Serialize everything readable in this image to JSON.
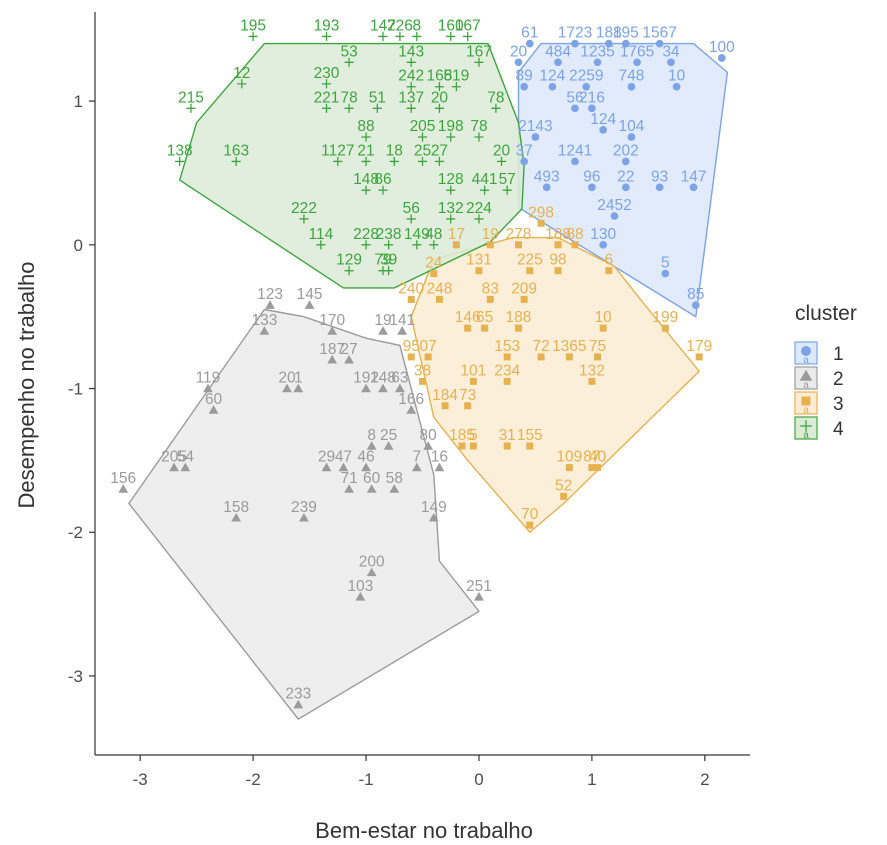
{
  "chart_data": {
    "type": "scatter",
    "title": "",
    "xlabel": "Bem-estar no trabalho",
    "ylabel": "Desempenho no trabalho",
    "xlim": [
      -3.4,
      2.4
    ],
    "ylim": [
      -3.55,
      1.62
    ],
    "x_ticks": [
      -3,
      -2,
      -1,
      0,
      1,
      2
    ],
    "y_ticks": [
      -3,
      -2,
      -1,
      0,
      1
    ],
    "x_tick_labels": [
      "-3",
      "-2",
      "-1",
      "0",
      "1",
      "2"
    ],
    "y_tick_labels": [
      "-3",
      "-2",
      "-1",
      "0",
      "1"
    ],
    "grid": false,
    "legend": {
      "title": "cluster",
      "placement": "right",
      "entries": [
        {
          "label": "1",
          "marker": "circle",
          "color": "#7ca3e8"
        },
        {
          "label": "2",
          "marker": "triangle",
          "color": "#9b9b9b"
        },
        {
          "label": "3",
          "marker": "square",
          "color": "#e8b150"
        },
        {
          "label": "4",
          "marker": "cross",
          "color": "#3ea53e"
        }
      ],
      "key_glyph": "a"
    },
    "series": [
      {
        "name": "1",
        "color": "#7ca3e8",
        "fill": "#dce8fb",
        "marker": "circle",
        "hull": [
          [
            0.55,
            1.4
          ],
          [
            1.9,
            1.4
          ],
          [
            2.2,
            1.2
          ],
          [
            1.92,
            -0.5
          ],
          [
            0.35,
            0.26
          ],
          [
            0.35,
            1.2
          ]
        ],
        "points": [
          {
            "label": "61",
            "x": 0.45,
            "y": 1.4
          },
          {
            "label": "1723",
            "x": 0.85,
            "y": 1.4
          },
          {
            "label": "188",
            "x": 1.15,
            "y": 1.4
          },
          {
            "label": "195",
            "x": 1.3,
            "y": 1.4
          },
          {
            "label": "1567",
            "x": 1.6,
            "y": 1.4
          },
          {
            "label": "100",
            "x": 2.15,
            "y": 1.3
          },
          {
            "label": "20",
            "x": 0.35,
            "y": 1.27
          },
          {
            "label": "484",
            "x": 0.7,
            "y": 1.27
          },
          {
            "label": "1235",
            "x": 1.05,
            "y": 1.27
          },
          {
            "label": "1765",
            "x": 1.4,
            "y": 1.27
          },
          {
            "label": "34",
            "x": 1.7,
            "y": 1.27
          },
          {
            "label": "89",
            "x": 0.4,
            "y": 1.1
          },
          {
            "label": "124",
            "x": 0.65,
            "y": 1.1
          },
          {
            "label": "2259",
            "x": 0.95,
            "y": 1.1
          },
          {
            "label": "748",
            "x": 1.35,
            "y": 1.1
          },
          {
            "label": "10",
            "x": 1.75,
            "y": 1.1
          },
          {
            "label": "56",
            "x": 0.85,
            "y": 0.95
          },
          {
            "label": "216",
            "x": 1.0,
            "y": 0.95
          },
          {
            "label": "2143",
            "x": 0.5,
            "y": 0.75
          },
          {
            "label": "124",
            "x": 1.1,
            "y": 0.8
          },
          {
            "label": "104",
            "x": 1.35,
            "y": 0.75
          },
          {
            "label": "37",
            "x": 0.4,
            "y": 0.58
          },
          {
            "label": "1241",
            "x": 0.85,
            "y": 0.58
          },
          {
            "label": "202",
            "x": 1.3,
            "y": 0.58
          },
          {
            "label": "493",
            "x": 0.6,
            "y": 0.4
          },
          {
            "label": "96",
            "x": 1.0,
            "y": 0.4
          },
          {
            "label": "22",
            "x": 1.3,
            "y": 0.4
          },
          {
            "label": "93",
            "x": 1.6,
            "y": 0.4
          },
          {
            "label": "147",
            "x": 1.9,
            "y": 0.4
          },
          {
            "label": "2452",
            "x": 1.2,
            "y": 0.2
          },
          {
            "label": "130",
            "x": 1.1,
            "y": 0.0
          },
          {
            "label": "5",
            "x": 1.65,
            "y": -0.2
          },
          {
            "label": "85",
            "x": 1.92,
            "y": -0.42
          }
        ]
      },
      {
        "name": "2",
        "color": "#9b9b9b",
        "fill": "#ebebeb",
        "marker": "triangle",
        "hull": [
          [
            -1.9,
            -0.45
          ],
          [
            -1.55,
            -0.5
          ],
          [
            -1.0,
            -0.65
          ],
          [
            -0.7,
            -0.7
          ],
          [
            -0.4,
            -1.6
          ],
          [
            -0.35,
            -2.2
          ],
          [
            0.0,
            -2.55
          ],
          [
            -1.6,
            -3.3
          ],
          [
            -3.1,
            -1.8
          ]
        ],
        "points": [
          {
            "label": "123",
            "x": -1.85,
            "y": -0.42
          },
          {
            "label": "145",
            "x": -1.5,
            "y": -0.42
          },
          {
            "label": "133",
            "x": -1.9,
            "y": -0.6
          },
          {
            "label": "170",
            "x": -1.3,
            "y": -0.6
          },
          {
            "label": "19",
            "x": -0.85,
            "y": -0.6
          },
          {
            "label": "141",
            "x": -0.68,
            "y": -0.6
          },
          {
            "label": "187",
            "x": -1.3,
            "y": -0.8
          },
          {
            "label": "27",
            "x": -1.15,
            "y": -0.8
          },
          {
            "label": "119",
            "x": -2.4,
            "y": -1.0
          },
          {
            "label": "20",
            "x": -1.7,
            "y": -1.0
          },
          {
            "label": "1",
            "x": -1.6,
            "y": -1.0
          },
          {
            "label": "192",
            "x": -1.0,
            "y": -1.0
          },
          {
            "label": "148",
            "x": -0.85,
            "y": -1.0
          },
          {
            "label": "63",
            "x": -0.7,
            "y": -1.0
          },
          {
            "label": "60",
            "x": -2.35,
            "y": -1.15
          },
          {
            "label": "166",
            "x": -0.6,
            "y": -1.15
          },
          {
            "label": "8",
            "x": -0.95,
            "y": -1.4
          },
          {
            "label": "25",
            "x": -0.8,
            "y": -1.4
          },
          {
            "label": "80",
            "x": -0.45,
            "y": -1.4
          },
          {
            "label": "205",
            "x": -2.7,
            "y": -1.55
          },
          {
            "label": "54",
            "x": -2.6,
            "y": -1.55
          },
          {
            "label": "29",
            "x": -1.35,
            "y": -1.55
          },
          {
            "label": "47",
            "x": -1.2,
            "y": -1.55
          },
          {
            "label": "46",
            "x": -1.0,
            "y": -1.55
          },
          {
            "label": "7",
            "x": -0.55,
            "y": -1.55
          },
          {
            "label": "16",
            "x": -0.35,
            "y": -1.55
          },
          {
            "label": "71",
            "x": -1.15,
            "y": -1.7
          },
          {
            "label": "60",
            "x": -0.95,
            "y": -1.7
          },
          {
            "label": "58",
            "x": -0.75,
            "y": -1.7
          },
          {
            "label": "156",
            "x": -3.15,
            "y": -1.7
          },
          {
            "label": "158",
            "x": -2.15,
            "y": -1.9
          },
          {
            "label": "239",
            "x": -1.55,
            "y": -1.9
          },
          {
            "label": "149",
            "x": -0.4,
            "y": -1.9
          },
          {
            "label": "200",
            "x": -0.95,
            "y": -2.28
          },
          {
            "label": "103",
            "x": -1.05,
            "y": -2.45
          },
          {
            "label": "251",
            "x": 0.0,
            "y": -2.45
          },
          {
            "label": "233",
            "x": -1.6,
            "y": -3.2
          }
        ]
      },
      {
        "name": "3",
        "color": "#e8b150",
        "fill": "#fcecd2",
        "marker": "square",
        "hull": [
          [
            -0.6,
            -0.5
          ],
          [
            -0.4,
            -0.1
          ],
          [
            0.3,
            0.05
          ],
          [
            0.7,
            0.05
          ],
          [
            1.2,
            -0.15
          ],
          [
            1.45,
            -0.4
          ],
          [
            1.95,
            -0.88
          ],
          [
            0.75,
            -1.8
          ],
          [
            0.45,
            -2.0
          ],
          [
            -0.1,
            -1.5
          ],
          [
            -0.4,
            -1.2
          ]
        ],
        "points": [
          {
            "label": "298",
            "x": 0.55,
            "y": 0.15
          },
          {
            "label": "17",
            "x": -0.2,
            "y": 0.0
          },
          {
            "label": "19",
            "x": 0.1,
            "y": 0.0
          },
          {
            "label": "278",
            "x": 0.35,
            "y": 0.0
          },
          {
            "label": "188",
            "x": 0.7,
            "y": 0.0
          },
          {
            "label": "88",
            "x": 0.85,
            "y": 0.0
          },
          {
            "label": "131",
            "x": 0.0,
            "y": -0.18
          },
          {
            "label": "225",
            "x": 0.45,
            "y": -0.18
          },
          {
            "label": "98",
            "x": 0.7,
            "y": -0.18
          },
          {
            "label": "6",
            "x": 1.15,
            "y": -0.18
          },
          {
            "label": "24",
            "x": -0.4,
            "y": -0.2
          },
          {
            "label": "240",
            "x": -0.6,
            "y": -0.38
          },
          {
            "label": "248",
            "x": -0.35,
            "y": -0.38
          },
          {
            "label": "83",
            "x": 0.1,
            "y": -0.38
          },
          {
            "label": "209",
            "x": 0.4,
            "y": -0.38
          },
          {
            "label": "146",
            "x": -0.1,
            "y": -0.58
          },
          {
            "label": "65",
            "x": 0.05,
            "y": -0.58
          },
          {
            "label": "188",
            "x": 0.35,
            "y": -0.58
          },
          {
            "label": "10",
            "x": 1.1,
            "y": -0.58
          },
          {
            "label": "199",
            "x": 1.65,
            "y": -0.58
          },
          {
            "label": "95",
            "x": -0.6,
            "y": -0.78
          },
          {
            "label": "07",
            "x": -0.45,
            "y": -0.78
          },
          {
            "label": "153",
            "x": 0.25,
            "y": -0.78
          },
          {
            "label": "72",
            "x": 0.55,
            "y": -0.78
          },
          {
            "label": "1365",
            "x": 0.8,
            "y": -0.78
          },
          {
            "label": "75",
            "x": 1.05,
            "y": -0.78
          },
          {
            "label": "179",
            "x": 1.95,
            "y": -0.78
          },
          {
            "label": "38",
            "x": -0.5,
            "y": -0.95
          },
          {
            "label": "101",
            "x": -0.05,
            "y": -0.95
          },
          {
            "label": "234",
            "x": 0.25,
            "y": -0.95
          },
          {
            "label": "132",
            "x": 1.0,
            "y": -0.95
          },
          {
            "label": "184",
            "x": -0.3,
            "y": -1.12
          },
          {
            "label": "73",
            "x": -0.1,
            "y": -1.12
          },
          {
            "label": "185",
            "x": -0.15,
            "y": -1.4
          },
          {
            "label": "5",
            "x": -0.05,
            "y": -1.4
          },
          {
            "label": "31",
            "x": 0.25,
            "y": -1.4
          },
          {
            "label": "155",
            "x": 0.45,
            "y": -1.4
          },
          {
            "label": "109",
            "x": 0.8,
            "y": -1.55
          },
          {
            "label": "87",
            "x": 1.0,
            "y": -1.55
          },
          {
            "label": "40",
            "x": 1.05,
            "y": -1.55
          },
          {
            "label": "52",
            "x": 0.75,
            "y": -1.75
          },
          {
            "label": "70",
            "x": 0.45,
            "y": -1.95
          }
        ]
      },
      {
        "name": "4",
        "color": "#3ea53e",
        "fill": "#dcebd7",
        "marker": "cross",
        "hull": [
          [
            -1.9,
            1.4
          ],
          [
            0.08,
            1.4
          ],
          [
            0.35,
            0.85
          ],
          [
            0.4,
            0.55
          ],
          [
            0.38,
            0.25
          ],
          [
            0.1,
            0.02
          ],
          [
            -0.75,
            -0.3
          ],
          [
            -1.2,
            -0.3
          ],
          [
            -2.65,
            0.45
          ],
          [
            -2.5,
            0.85
          ]
        ],
        "points": [
          {
            "label": "195",
            "x": -2.0,
            "y": 1.45
          },
          {
            "label": "193",
            "x": -1.35,
            "y": 1.45
          },
          {
            "label": "147",
            "x": -0.85,
            "y": 1.45
          },
          {
            "label": "226",
            "x": -0.7,
            "y": 1.45
          },
          {
            "label": "8",
            "x": -0.55,
            "y": 1.45
          },
          {
            "label": "160",
            "x": -0.25,
            "y": 1.45
          },
          {
            "label": "167",
            "x": -0.1,
            "y": 1.45
          },
          {
            "label": "53",
            "x": -1.15,
            "y": 1.27
          },
          {
            "label": "143",
            "x": -0.6,
            "y": 1.27
          },
          {
            "label": "167",
            "x": 0.0,
            "y": 1.27
          },
          {
            "label": "230",
            "x": -1.35,
            "y": 1.12
          },
          {
            "label": "242",
            "x": -0.6,
            "y": 1.1
          },
          {
            "label": "168",
            "x": -0.35,
            "y": 1.1
          },
          {
            "label": "519",
            "x": -0.2,
            "y": 1.1
          },
          {
            "label": "12",
            "x": -2.1,
            "y": 1.12
          },
          {
            "label": "215",
            "x": -2.55,
            "y": 0.95
          },
          {
            "label": "221",
            "x": -1.35,
            "y": 0.95
          },
          {
            "label": "78",
            "x": -1.15,
            "y": 0.95
          },
          {
            "label": "51",
            "x": -0.9,
            "y": 0.95
          },
          {
            "label": "137",
            "x": -0.6,
            "y": 0.95
          },
          {
            "label": "20",
            "x": -0.35,
            "y": 0.95
          },
          {
            "label": "78",
            "x": 0.15,
            "y": 0.95
          },
          {
            "label": "88",
            "x": -1.0,
            "y": 0.75
          },
          {
            "label": "205",
            "x": -0.5,
            "y": 0.75
          },
          {
            "label": "198",
            "x": -0.25,
            "y": 0.75
          },
          {
            "label": "78",
            "x": 0.0,
            "y": 0.75
          },
          {
            "label": "138",
            "x": -2.65,
            "y": 0.58
          },
          {
            "label": "163",
            "x": -2.15,
            "y": 0.58
          },
          {
            "label": "1127",
            "x": -1.25,
            "y": 0.58
          },
          {
            "label": "21",
            "x": -1.0,
            "y": 0.58
          },
          {
            "label": "18",
            "x": -0.75,
            "y": 0.58
          },
          {
            "label": "25",
            "x": -0.5,
            "y": 0.58
          },
          {
            "label": "27",
            "x": -0.35,
            "y": 0.58
          },
          {
            "label": "20",
            "x": 0.2,
            "y": 0.58
          },
          {
            "label": "148",
            "x": -1.0,
            "y": 0.38
          },
          {
            "label": "86",
            "x": -0.85,
            "y": 0.38
          },
          {
            "label": "128",
            "x": -0.25,
            "y": 0.38
          },
          {
            "label": "441",
            "x": 0.05,
            "y": 0.38
          },
          {
            "label": "57",
            "x": 0.25,
            "y": 0.38
          },
          {
            "label": "222",
            "x": -1.55,
            "y": 0.18
          },
          {
            "label": "56",
            "x": -0.6,
            "y": 0.18
          },
          {
            "label": "132",
            "x": -0.25,
            "y": 0.18
          },
          {
            "label": "224",
            "x": 0.0,
            "y": 0.18
          },
          {
            "label": "114",
            "x": -1.4,
            "y": 0.0
          },
          {
            "label": "228",
            "x": -1.0,
            "y": 0.0
          },
          {
            "label": "238",
            "x": -0.8,
            "y": 0.0
          },
          {
            "label": "149",
            "x": -0.55,
            "y": 0.0
          },
          {
            "label": "48",
            "x": -0.4,
            "y": 0.0
          },
          {
            "label": "129",
            "x": -1.15,
            "y": -0.18
          },
          {
            "label": "79",
            "x": -0.85,
            "y": -0.18
          },
          {
            "label": "39",
            "x": -0.8,
            "y": -0.18
          }
        ]
      }
    ]
  }
}
